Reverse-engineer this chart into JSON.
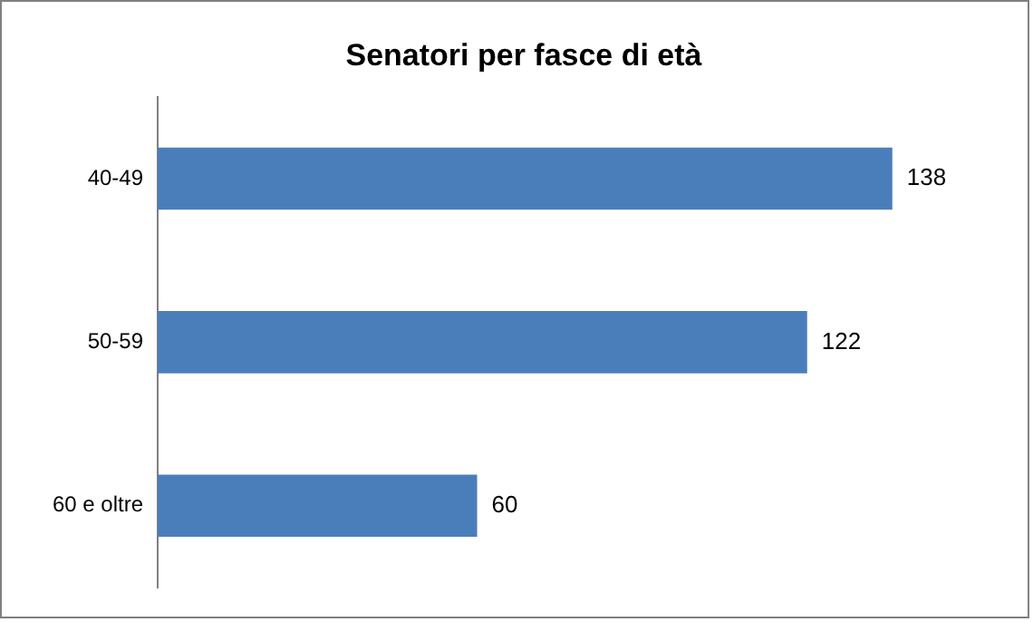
{
  "chart_data": {
    "type": "bar",
    "orientation": "horizontal",
    "title": "Senatori per fasce di età",
    "categories": [
      "40-49",
      "50-59",
      "60 e oltre"
    ],
    "values": [
      138,
      122,
      60
    ],
    "color": "#4a7ebb",
    "data_labels": true,
    "legend": false
  }
}
